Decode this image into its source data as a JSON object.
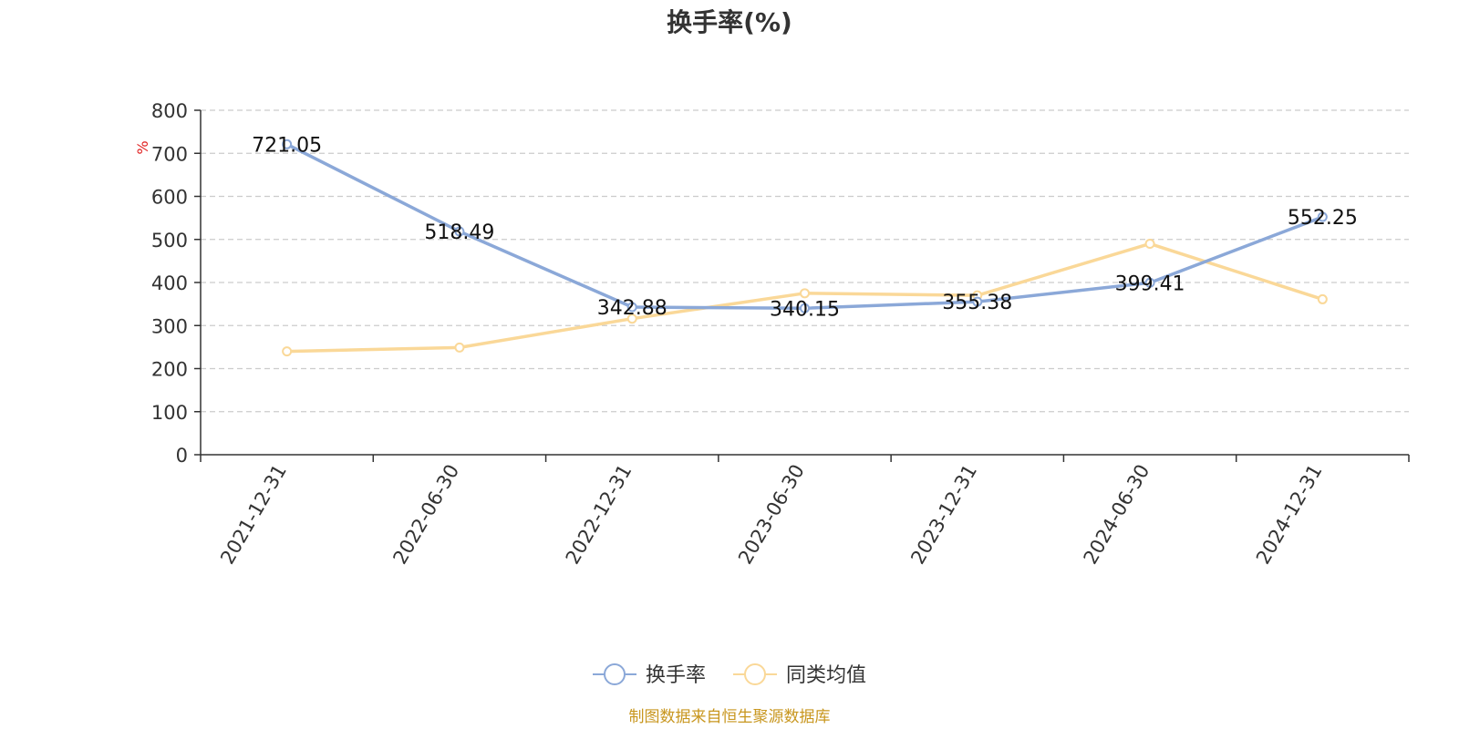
{
  "chart_data": {
    "type": "line",
    "title": "换手率(%)",
    "ylabel": "%",
    "xlabel": "",
    "ylim": [
      0,
      800
    ],
    "yticks": [
      0,
      100,
      200,
      300,
      400,
      500,
      600,
      700,
      800
    ],
    "grid": true,
    "categories": [
      "2021-12-31",
      "2022-06-30",
      "2022-12-31",
      "2023-06-30",
      "2023-12-31",
      "2024-06-30",
      "2024-12-31"
    ],
    "series": [
      {
        "name": "换手率",
        "values": [
          721.05,
          518.49,
          342.88,
          340.15,
          355.38,
          399.41,
          552.25
        ],
        "data_labels": [
          "721.05",
          "518.49",
          "342.88",
          "340.15",
          "355.38",
          "399.41",
          "552.25"
        ],
        "color": "#8ba8d8"
      },
      {
        "name": "同类均值",
        "values": [
          240,
          249,
          316,
          375,
          370,
          490,
          361
        ],
        "color": "#fad898"
      }
    ],
    "legend_position": "bottom-center"
  },
  "footer": {
    "source": "制图数据来自恒生聚源数据库",
    "source_color": "#c8961e"
  },
  "colors": {
    "axis": "#333333",
    "grid": "#cccccc",
    "unit": "#e02020"
  }
}
